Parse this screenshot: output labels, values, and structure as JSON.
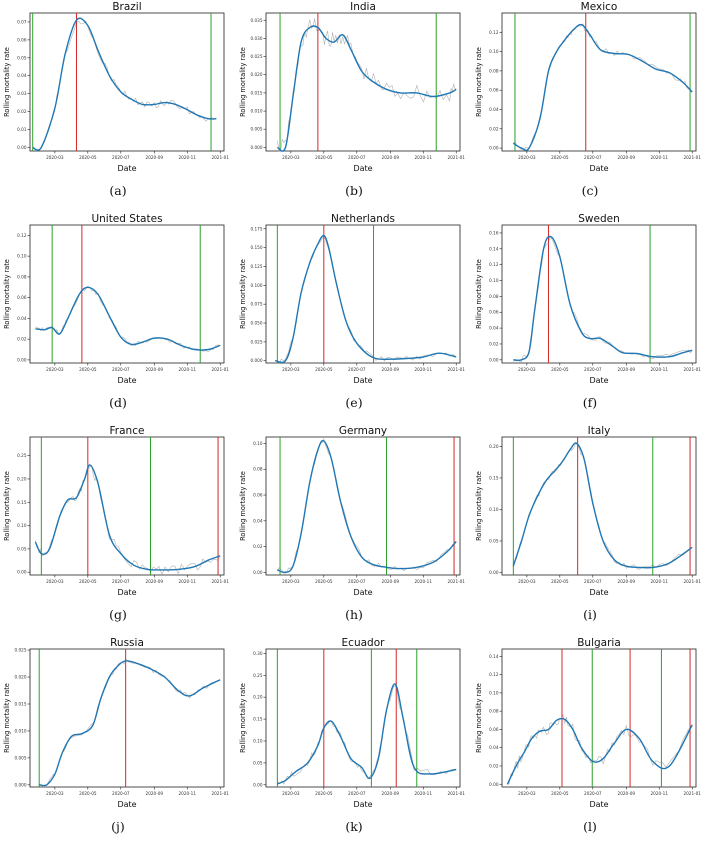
{
  "colors": {
    "smoothed": "#1f77b4",
    "raw": "#b0b0b0",
    "green_line": "#2ca02c",
    "red_line": "#d62728"
  },
  "x_ticks": [
    "2020-03",
    "2020-05",
    "2020-07",
    "2020-09",
    "2020-11",
    "2021-01"
  ],
  "xlabel": "Date",
  "ylabel": "Rolling mortality rate",
  "chart_data": [
    {
      "type": "line",
      "title": "Brazil",
      "caption": "(a)",
      "ylim": [
        -0.002,
        0.075
      ],
      "y_ticks": [
        "0.00",
        "0.01",
        "0.02",
        "0.03",
        "0.04",
        "0.05",
        "0.06",
        "0.07"
      ],
      "x": [
        "2020-01-20",
        "2020-02-05",
        "2020-03-01",
        "2020-03-20",
        "2020-04-10",
        "2020-05-01",
        "2020-05-20",
        "2020-06-10",
        "2020-07-01",
        "2020-07-20",
        "2020-08-10",
        "2020-09-01",
        "2020-09-20",
        "2020-10-10",
        "2020-11-01",
        "2020-11-20",
        "2020-12-10",
        "2020-12-25"
      ],
      "series": [
        {
          "values": [
            0,
            0,
            0.022,
            0.052,
            0.071,
            0.068,
            0.054,
            0.04,
            0.031,
            0.027,
            0.024,
            0.024,
            0.025,
            0.024,
            0.021,
            0.018,
            0.016,
            0.016
          ]
        }
      ],
      "vlines": [
        {
          "date": "2020-01-20",
          "color": "green"
        },
        {
          "date": "2020-04-10",
          "color": "red"
        },
        {
          "date": "2020-12-15",
          "color": "green"
        }
      ],
      "noise": 0.002
    },
    {
      "type": "line",
      "title": "India",
      "caption": "(b)",
      "ylim": [
        -0.001,
        0.037
      ],
      "y_ticks": [
        "0.000",
        "0.005",
        "0.010",
        "0.015",
        "0.020",
        "0.025",
        "0.030",
        "0.035"
      ],
      "x": [
        "2020-02-05",
        "2020-02-20",
        "2020-03-05",
        "2020-03-20",
        "2020-04-05",
        "2020-04-20",
        "2020-05-05",
        "2020-05-20",
        "2020-06-05",
        "2020-06-20",
        "2020-07-10",
        "2020-08-01",
        "2020-08-25",
        "2020-09-20",
        "2020-10-20",
        "2020-11-20",
        "2020-12-20",
        "2021-01-01"
      ],
      "series": [
        {
          "values": [
            0,
            0,
            0.014,
            0.029,
            0.033,
            0.033,
            0.03,
            0.029,
            0.031,
            0.027,
            0.021,
            0.018,
            0.016,
            0.015,
            0.015,
            0.014,
            0.015,
            0.016
          ]
        }
      ],
      "vlines": [
        {
          "date": "2020-02-10",
          "color": "green"
        },
        {
          "date": "2020-04-20",
          "color": "red"
        },
        {
          "date": "2020-11-25",
          "color": "green"
        }
      ],
      "noise": 0.0025
    },
    {
      "type": "line",
      "title": "Mexico",
      "caption": "(c)",
      "ylim": [
        -0.003,
        0.14
      ],
      "y_ticks": [
        "0.00",
        "0.02",
        "0.04",
        "0.06",
        "0.08",
        "0.10",
        "0.12"
      ],
      "x": [
        "2020-02-05",
        "2020-02-20",
        "2020-03-05",
        "2020-03-25",
        "2020-04-10",
        "2020-04-25",
        "2020-05-10",
        "2020-05-25",
        "2020-06-10",
        "2020-06-25",
        "2020-07-15",
        "2020-08-10",
        "2020-09-05",
        "2020-10-01",
        "2020-10-25",
        "2020-11-20",
        "2020-12-15",
        "2021-01-01"
      ],
      "series": [
        {
          "values": [
            0.005,
            0,
            0,
            0.03,
            0.08,
            0.1,
            0.112,
            0.122,
            0.128,
            0.118,
            0.102,
            0.098,
            0.097,
            0.09,
            0.082,
            0.078,
            0.068,
            0.058
          ]
        }
      ],
      "vlines": [
        {
          "date": "2020-02-08",
          "color": "green"
        },
        {
          "date": "2020-06-18",
          "color": "red"
        },
        {
          "date": "2020-12-28",
          "color": "green"
        }
      ],
      "noise": 0.003
    },
    {
      "type": "line",
      "title": "United States",
      "caption": "(d)",
      "ylim": [
        -0.003,
        0.13
      ],
      "y_ticks": [
        "0.00",
        "0.02",
        "0.04",
        "0.06",
        "0.08",
        "0.10",
        "0.12"
      ],
      "x": [
        "2020-01-25",
        "2020-02-10",
        "2020-02-25",
        "2020-03-10",
        "2020-03-25",
        "2020-04-15",
        "2020-05-01",
        "2020-05-20",
        "2020-06-10",
        "2020-07-01",
        "2020-07-20",
        "2020-08-10",
        "2020-09-01",
        "2020-09-25",
        "2020-10-20",
        "2020-11-15",
        "2020-12-10",
        "2021-01-01"
      ],
      "series": [
        {
          "values": [
            0.03,
            0.029,
            0.031,
            0.025,
            0.04,
            0.063,
            0.07,
            0.063,
            0.042,
            0.022,
            0.015,
            0.017,
            0.021,
            0.02,
            0.014,
            0.01,
            0.01,
            0.014
          ]
        }
      ],
      "vlines": [
        {
          "date": "2020-02-25",
          "color": "green"
        },
        {
          "date": "2020-04-20",
          "color": "red"
        },
        {
          "date": "2020-11-25",
          "color": "green"
        }
      ],
      "noise": 0.002
    },
    {
      "type": "line",
      "title": "Netherlands",
      "caption": "(e)",
      "ylim": [
        -0.003,
        0.18
      ],
      "y_ticks": [
        "0.000",
        "0.025",
        "0.050",
        "0.075",
        "0.100",
        "0.125",
        "0.150",
        "0.175"
      ],
      "x": [
        "2020-02-01",
        "2020-02-20",
        "2020-03-05",
        "2020-03-20",
        "2020-04-05",
        "2020-04-20",
        "2020-05-01",
        "2020-05-10",
        "2020-05-25",
        "2020-06-10",
        "2020-06-25",
        "2020-07-15",
        "2020-08-05",
        "2020-09-01",
        "2020-10-01",
        "2020-11-01",
        "2020-12-01",
        "2021-01-01"
      ],
      "series": [
        {
          "values": [
            0,
            0,
            0.03,
            0.09,
            0.13,
            0.155,
            0.166,
            0.15,
            0.1,
            0.055,
            0.03,
            0.012,
            0.003,
            0.002,
            0.003,
            0.005,
            0.01,
            0.005
          ]
        }
      ],
      "vlines": [
        {
          "date": "2020-02-05",
          "color": "green"
        },
        {
          "date": "2020-05-01",
          "color": "red"
        },
        {
          "date": "2020-08-01",
          "color": "green"
        }
      ],
      "noise": 0.003
    },
    {
      "type": "line",
      "title": "Sweden",
      "caption": "(f)",
      "ylim": [
        -0.004,
        0.17
      ],
      "y_ticks": [
        "0.00",
        "0.02",
        "0.04",
        "0.06",
        "0.08",
        "0.10",
        "0.12",
        "0.14",
        "0.16"
      ],
      "x": [
        "2020-02-05",
        "2020-02-20",
        "2020-03-05",
        "2020-03-15",
        "2020-04-01",
        "2020-04-15",
        "2020-05-01",
        "2020-05-20",
        "2020-06-10",
        "2020-06-25",
        "2020-07-15",
        "2020-08-05",
        "2020-08-25",
        "2020-09-20",
        "2020-10-20",
        "2020-11-20",
        "2020-12-15",
        "2021-01-01"
      ],
      "series": [
        {
          "values": [
            0,
            0,
            0.01,
            0.06,
            0.14,
            0.155,
            0.13,
            0.07,
            0.035,
            0.027,
            0.027,
            0.018,
            0.009,
            0.008,
            0.004,
            0.004,
            0.009,
            0.012
          ]
        }
      ],
      "vlines": [
        {
          "date": "2020-04-10",
          "color": "red"
        },
        {
          "date": "2020-10-15",
          "color": "green"
        }
      ],
      "noise": 0.003
    },
    {
      "type": "line",
      "title": "France",
      "caption": "(g)",
      "ylim": [
        -0.006,
        0.29
      ],
      "y_ticks": [
        "0.00",
        "0.05",
        "0.10",
        "0.15",
        "0.20",
        "0.25"
      ],
      "x": [
        "2020-01-25",
        "2020-02-05",
        "2020-02-20",
        "2020-03-10",
        "2020-03-25",
        "2020-04-10",
        "2020-04-25",
        "2020-05-05",
        "2020-05-20",
        "2020-06-10",
        "2020-07-01",
        "2020-07-25",
        "2020-08-20",
        "2020-09-15",
        "2020-10-15",
        "2020-11-15",
        "2020-12-10",
        "2021-01-01"
      ],
      "series": [
        {
          "values": [
            0.065,
            0.04,
            0.05,
            0.12,
            0.155,
            0.16,
            0.2,
            0.23,
            0.19,
            0.08,
            0.04,
            0.015,
            0.006,
            0.005,
            0.006,
            0.012,
            0.026,
            0.035
          ]
        }
      ],
      "vlines": [
        {
          "date": "2020-02-05",
          "color": "green"
        },
        {
          "date": "2020-05-01",
          "color": "red"
        },
        {
          "date": "2020-08-25",
          "color": "green"
        },
        {
          "date": "2020-12-28",
          "color": "red"
        }
      ],
      "noise": 0.01
    },
    {
      "type": "line",
      "title": "Germany",
      "caption": "(h)",
      "ylim": [
        -0.002,
        0.105
      ],
      "y_ticks": [
        "0.00",
        "0.02",
        "0.04",
        "0.06",
        "0.08",
        "0.10"
      ],
      "x": [
        "2020-02-05",
        "2020-02-20",
        "2020-03-05",
        "2020-03-20",
        "2020-04-05",
        "2020-04-20",
        "2020-05-01",
        "2020-05-15",
        "2020-06-01",
        "2020-06-20",
        "2020-07-10",
        "2020-08-01",
        "2020-08-25",
        "2020-09-20",
        "2020-10-20",
        "2020-11-20",
        "2020-12-15",
        "2021-01-01"
      ],
      "series": [
        {
          "values": [
            0.002,
            0,
            0.005,
            0.03,
            0.07,
            0.095,
            0.102,
            0.088,
            0.055,
            0.028,
            0.012,
            0.006,
            0.004,
            0.003,
            0.004,
            0.008,
            0.016,
            0.024
          ]
        }
      ],
      "vlines": [
        {
          "date": "2020-02-10",
          "color": "green"
        },
        {
          "date": "2020-08-25",
          "color": "green"
        },
        {
          "date": "2020-12-28",
          "color": "red"
        }
      ],
      "noise": 0.002
    },
    {
      "type": "line",
      "title": "Italy",
      "caption": "(i)",
      "ylim": [
        -0.004,
        0.215
      ],
      "y_ticks": [
        "0.00",
        "0.05",
        "0.10",
        "0.15",
        "0.20"
      ],
      "x": [
        "2020-02-05",
        "2020-02-20",
        "2020-03-05",
        "2020-03-20",
        "2020-04-05",
        "2020-04-20",
        "2020-05-05",
        "2020-05-20",
        "2020-06-01",
        "2020-06-15",
        "2020-07-01",
        "2020-07-20",
        "2020-08-10",
        "2020-09-01",
        "2020-09-25",
        "2020-10-20",
        "2020-11-20",
        "2021-01-01"
      ],
      "series": [
        {
          "values": [
            0.01,
            0.05,
            0.09,
            0.12,
            0.145,
            0.16,
            0.175,
            0.195,
            0.205,
            0.18,
            0.11,
            0.05,
            0.02,
            0.01,
            0.008,
            0.008,
            0.015,
            0.04
          ]
        }
      ],
      "vlines": [
        {
          "date": "2020-02-05",
          "color": "green"
        },
        {
          "date": "2020-06-03",
          "color": "red"
        },
        {
          "date": "2020-10-20",
          "color": "green"
        },
        {
          "date": "2020-12-28",
          "color": "red"
        }
      ],
      "noise": 0.004
    },
    {
      "type": "line",
      "title": "Russia",
      "caption": "(j)",
      "ylim": [
        -0.0004,
        0.0252
      ],
      "y_ticks": [
        "0.000",
        "0.005",
        "0.010",
        "0.015",
        "0.020",
        "0.025"
      ],
      "x": [
        "2020-02-01",
        "2020-02-15",
        "2020-03-01",
        "2020-03-15",
        "2020-04-01",
        "2020-04-20",
        "2020-05-10",
        "2020-05-25",
        "2020-06-10",
        "2020-06-25",
        "2020-07-10",
        "2020-08-01",
        "2020-08-25",
        "2020-09-20",
        "2020-10-15",
        "2020-11-05",
        "2020-12-01",
        "2021-01-01"
      ],
      "series": [
        {
          "values": [
            0,
            0,
            0.002,
            0.006,
            0.009,
            0.0095,
            0.011,
            0.016,
            0.02,
            0.022,
            0.023,
            0.0225,
            0.0215,
            0.02,
            0.0175,
            0.0165,
            0.018,
            0.0195
          ]
        }
      ],
      "vlines": [
        {
          "date": "2020-02-01",
          "color": "green"
        },
        {
          "date": "2020-07-10",
          "color": "red"
        }
      ],
      "noise": 0.0004
    },
    {
      "type": "line",
      "title": "Ecuador",
      "caption": "(k)",
      "ylim": [
        -0.005,
        0.31
      ],
      "y_ticks": [
        "0.00",
        "0.05",
        "0.10",
        "0.15",
        "0.20",
        "0.25",
        "0.30"
      ],
      "x": [
        "2020-02-05",
        "2020-02-20",
        "2020-03-10",
        "2020-04-01",
        "2020-04-20",
        "2020-05-01",
        "2020-05-15",
        "2020-06-01",
        "2020-06-20",
        "2020-07-10",
        "2020-07-25",
        "2020-08-10",
        "2020-08-25",
        "2020-09-10",
        "2020-09-25",
        "2020-10-15",
        "2020-11-15",
        "2021-01-01"
      ],
      "series": [
        {
          "values": [
            0.002,
            0.01,
            0.03,
            0.05,
            0.09,
            0.13,
            0.145,
            0.11,
            0.06,
            0.04,
            0.015,
            0.06,
            0.17,
            0.23,
            0.15,
            0.04,
            0.025,
            0.035
          ]
        }
      ],
      "vlines": [
        {
          "date": "2020-02-05",
          "color": "green"
        },
        {
          "date": "2020-05-01",
          "color": "red"
        },
        {
          "date": "2020-07-28",
          "color": "green"
        },
        {
          "date": "2020-09-12",
          "color": "red"
        },
        {
          "date": "2020-10-20",
          "color": "green"
        }
      ],
      "noise": 0.008
    },
    {
      "type": "line",
      "title": "Bulgaria",
      "caption": "(l)",
      "ylim": [
        -0.003,
        0.148
      ],
      "y_ticks": [
        "0.00",
        "0.02",
        "0.04",
        "0.06",
        "0.08",
        "0.10",
        "0.12",
        "0.14"
      ],
      "x": [
        "2020-01-25",
        "2020-02-10",
        "2020-02-25",
        "2020-03-10",
        "2020-03-25",
        "2020-04-10",
        "2020-04-25",
        "2020-05-10",
        "2020-05-25",
        "2020-06-10",
        "2020-07-01",
        "2020-07-20",
        "2020-08-10",
        "2020-09-01",
        "2020-09-25",
        "2020-10-20",
        "2020-11-20",
        "2021-01-01"
      ],
      "series": [
        {
          "values": [
            0,
            0.02,
            0.035,
            0.05,
            0.058,
            0.06,
            0.07,
            0.071,
            0.06,
            0.04,
            0.025,
            0.028,
            0.045,
            0.06,
            0.05,
            0.025,
            0.02,
            0.065
          ]
        }
      ],
      "vlines": [
        {
          "date": "2020-05-05",
          "color": "red"
        },
        {
          "date": "2020-06-30",
          "color": "green"
        },
        {
          "date": "2020-09-08",
          "color": "red"
        },
        {
          "date": "2020-11-05",
          "color": "green"
        },
        {
          "date": "2020-12-28",
          "color": "red"
        }
      ],
      "noise": 0.006
    }
  ]
}
